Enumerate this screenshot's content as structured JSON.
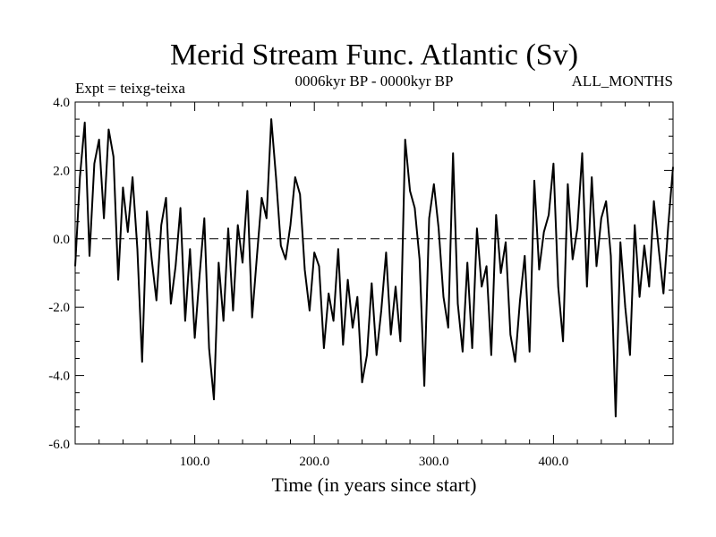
{
  "chart_data": {
    "type": "line",
    "title": "Merid Stream Func. Atlantic (Sv)",
    "experiment_label": "Expt = teixg-teixa",
    "period_label": "0006kyr BP - 0000kyr BP",
    "months_label": "ALL_MONTHS",
    "xlabel": "Time (in years since start)",
    "ylabel": "",
    "xlim": [
      0,
      500
    ],
    "ylim": [
      -6,
      4
    ],
    "x_ticks": [
      100,
      200,
      300,
      400
    ],
    "x_tick_labels": [
      "100.0",
      "200.0",
      "300.0",
      "400.0"
    ],
    "y_ticks": [
      4,
      2,
      0,
      -2,
      -4,
      -6
    ],
    "y_tick_labels": [
      "4.0",
      "2.0",
      "0.0",
      "-2.0",
      "-4.0",
      "-6.0"
    ],
    "reference_line": {
      "y": 0,
      "style": "dashed"
    },
    "series": [
      {
        "name": "Merid Stream Func. Atlantic",
        "x_start": 0,
        "x_step": 4,
        "values": [
          -0.8,
          1.8,
          3.4,
          -0.5,
          2.2,
          2.9,
          0.6,
          3.2,
          2.4,
          -1.2,
          1.5,
          0.2,
          1.8,
          -0.3,
          -3.6,
          0.8,
          -0.6,
          -1.8,
          0.4,
          1.2,
          -1.9,
          -0.8,
          0.9,
          -2.4,
          -0.3,
          -2.9,
          -1.1,
          0.6,
          -3.2,
          -4.7,
          -0.7,
          -2.4,
          0.3,
          -2.1,
          0.4,
          -0.7,
          1.4,
          -2.3,
          -0.5,
          1.2,
          0.6,
          3.5,
          1.8,
          -0.2,
          -0.6,
          0.4,
          1.8,
          1.3,
          -0.9,
          -2.1,
          -0.4,
          -0.8,
          -3.2,
          -1.6,
          -2.4,
          -0.3,
          -3.1,
          -1.2,
          -2.6,
          -1.7,
          -4.2,
          -3.4,
          -1.3,
          -3.4,
          -2.1,
          -0.4,
          -2.8,
          -1.4,
          -3.0,
          2.9,
          1.4,
          0.9,
          -0.6,
          -4.3,
          0.6,
          1.6,
          0.3,
          -1.7,
          -2.6,
          2.5,
          -1.9,
          -3.3,
          -0.7,
          -3.2,
          0.3,
          -1.4,
          -0.8,
          -3.4,
          0.7,
          -1.0,
          -0.1,
          -2.8,
          -3.6,
          -1.8,
          -0.5,
          -3.3,
          1.7,
          -0.9,
          0.2,
          0.7,
          2.2,
          -1.4,
          -3.0,
          1.6,
          -0.6,
          0.3,
          2.5,
          -1.4,
          1.8,
          -0.8,
          0.6,
          1.1,
          -0.5,
          -5.2,
          -0.1,
          -2.0,
          -3.4,
          0.4,
          -1.7,
          -0.2,
          -1.4,
          1.1,
          -0.3,
          -1.6,
          0.4,
          2.1
        ]
      }
    ]
  }
}
